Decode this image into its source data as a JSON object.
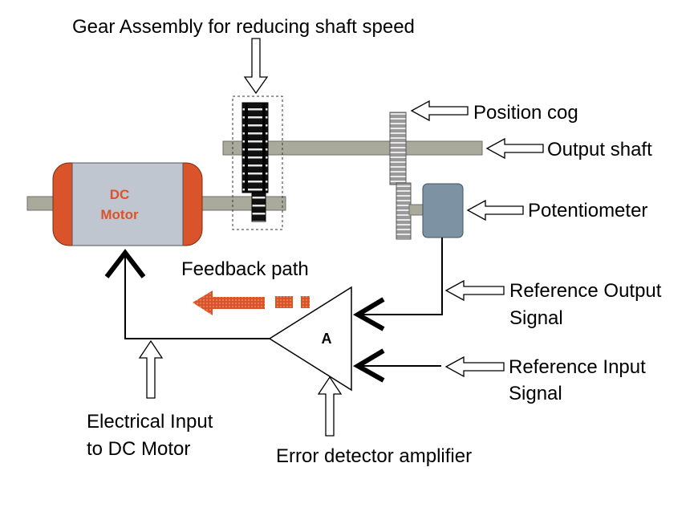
{
  "labels": {
    "gear_assembly": "Gear Assembly for reducing shaft speed",
    "position_cog": "Position cog",
    "output_shaft": "Output shaft",
    "potentiometer": "Potentiometer",
    "reference_output_line1": "Reference Output",
    "reference_output_line2": "Signal",
    "reference_input_line1": "Reference Input",
    "reference_input_line2": "Signal",
    "feedback_path": "Feedback path",
    "electrical_input_line1": "Electrical Input",
    "electrical_input_line2": "to DC Motor",
    "error_detector": "Error detector amplifier",
    "motor_line1": "DC",
    "motor_line2": "Motor",
    "amplifier": "A"
  },
  "colors": {
    "motor_end_caps": "#d9542b",
    "motor_body": "#bfc6d0",
    "motor_text": "#d9542b",
    "shaft": "#a9a99c",
    "potentiometer_body": "#7d93a3",
    "feedback_arrow": "#d9542b",
    "gear_dark": "#1a1a1a",
    "gear_light": "#c8c8c8"
  }
}
